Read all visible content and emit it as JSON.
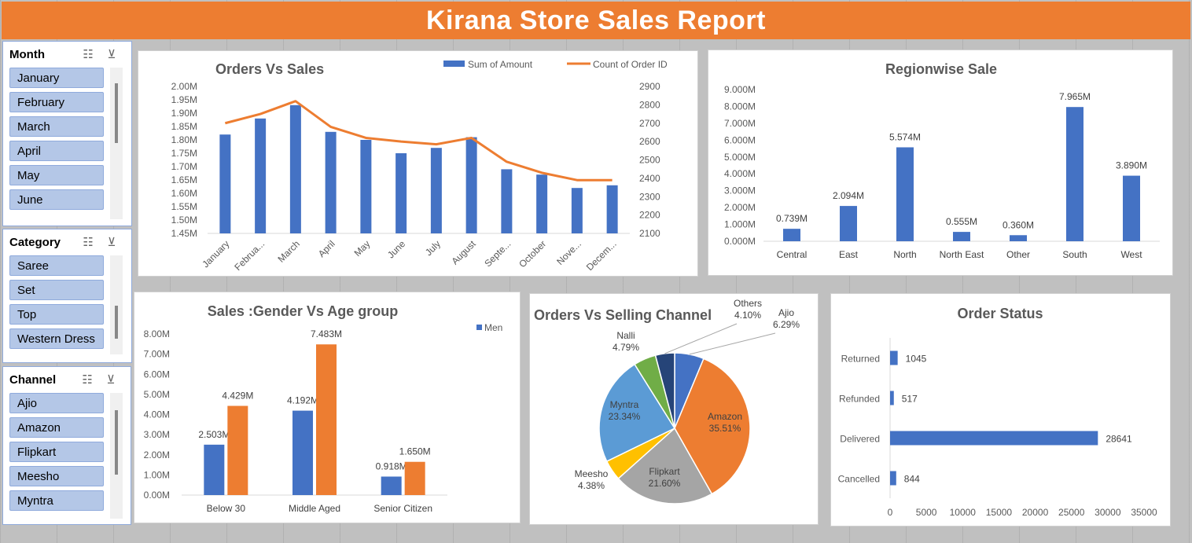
{
  "report_title": "Kirana Store Sales Report",
  "colors": {
    "title_bar": "#ed7d31",
    "blue": "#4472c4",
    "orange": "#ed7d31",
    "slicer_item": "#b4c7e7"
  },
  "slicers": {
    "month": {
      "title": "Month",
      "items": [
        "January",
        "February",
        "March",
        "April",
        "May",
        "June"
      ]
    },
    "category": {
      "title": "Category",
      "items": [
        "Saree",
        "Set",
        "Top",
        "Western Dress"
      ]
    },
    "channel": {
      "title": "Channel",
      "items": [
        "Ajio",
        "Amazon",
        "Flipkart",
        "Meesho",
        "Myntra"
      ]
    },
    "multi_select_icon": "multi-select-icon",
    "clear_filter_icon": "clear-filter-icon"
  },
  "chart_data": [
    {
      "id": "orders_vs_sales",
      "type": "bar",
      "title": "Orders Vs Sales",
      "categories": [
        "January",
        "Februa...",
        "March",
        "April",
        "May",
        "June",
        "July",
        "August",
        "Septe...",
        "October",
        "Nove...",
        "Decem..."
      ],
      "series": [
        {
          "name": "Sum of Amount",
          "kind": "bar",
          "axis": "left",
          "values": [
            1.82,
            1.88,
            1.93,
            1.83,
            1.8,
            1.75,
            1.77,
            1.81,
            1.69,
            1.67,
            1.62,
            1.63
          ]
        },
        {
          "name": "Count of Order ID",
          "kind": "line",
          "axis": "right",
          "values": [
            2700,
            2750,
            2820,
            2680,
            2620,
            2600,
            2585,
            2620,
            2490,
            2430,
            2390,
            2390
          ]
        }
      ],
      "left_ticks": [
        "2.00M",
        "1.95M",
        "1.90M",
        "1.85M",
        "1.80M",
        "1.75M",
        "1.70M",
        "1.65M",
        "1.60M",
        "1.55M",
        "1.50M",
        "1.45M"
      ],
      "right_ticks": [
        "2900",
        "2800",
        "2700",
        "2600",
        "2500",
        "2400",
        "2300",
        "2200",
        "2100"
      ],
      "ylim_left": [
        1.45,
        2.0
      ],
      "ylim_right": [
        2100,
        2900
      ],
      "legend": "top-right"
    },
    {
      "id": "regionwise_sale",
      "type": "bar",
      "title": "Regionwise Sale",
      "categories": [
        "Central",
        "East",
        "North",
        "North East",
        "Other",
        "South",
        "West"
      ],
      "values": [
        0.739,
        2.094,
        5.574,
        0.555,
        0.36,
        7.965,
        3.89
      ],
      "labels": [
        "0.739M",
        "2.094M",
        "5.574M",
        "0.555M",
        "0.360M",
        "7.965M",
        "3.890M"
      ],
      "y_ticks": [
        "9.000M",
        "8.000M",
        "7.000M",
        "6.000M",
        "5.000M",
        "4.000M",
        "3.000M",
        "2.000M",
        "1.000M",
        "0.000M"
      ],
      "ylim": [
        0,
        9
      ]
    },
    {
      "id": "gender_vs_age",
      "type": "bar",
      "title": "Sales :Gender Vs Age group",
      "categories": [
        "Below 30",
        "Middle Aged",
        "Senior Citizen"
      ],
      "series": [
        {
          "name": "Men",
          "values": [
            2.503,
            4.192,
            0.918
          ],
          "labels": [
            "2.503M",
            "4.192M",
            "0.918M"
          ]
        },
        {
          "name": "",
          "values": [
            4.429,
            7.483,
            1.65
          ],
          "labels": [
            "4.429M",
            "7.483M",
            "1.650M"
          ]
        }
      ],
      "y_ticks": [
        "8.00M",
        "7.00M",
        "6.00M",
        "5.00M",
        "4.00M",
        "3.00M",
        "2.00M",
        "1.00M",
        "0.00M"
      ],
      "ylim": [
        0,
        8
      ],
      "legend": "top-right"
    },
    {
      "id": "orders_vs_channel",
      "type": "pie",
      "title": "Orders Vs Selling Channel",
      "slices": [
        {
          "name": "Ajio",
          "label": "6.29%",
          "value": 6.29,
          "color": "#4472c4"
        },
        {
          "name": "Amazon",
          "label": "35.51%",
          "value": 35.51,
          "color": "#ed7d31"
        },
        {
          "name": "Flipkart",
          "label": "21.60%",
          "value": 21.6,
          "color": "#a5a5a5"
        },
        {
          "name": "Meesho",
          "label": "4.38%",
          "value": 4.38,
          "color": "#ffc000"
        },
        {
          "name": "Myntra",
          "label": "23.34%",
          "value": 23.34,
          "color": "#5b9bd5"
        },
        {
          "name": "Nalli",
          "label": "4.79%",
          "value": 4.79,
          "color": "#70ad47"
        },
        {
          "name": "Others",
          "label": "4.10%",
          "value": 4.1,
          "color": "#264478"
        }
      ]
    },
    {
      "id": "order_status",
      "type": "bar",
      "orientation": "horizontal",
      "title": "Order Status",
      "categories": [
        "Returned",
        "Refunded",
        "Delivered",
        "Cancelled"
      ],
      "values": [
        1045,
        517,
        28641,
        844
      ],
      "labels": [
        "1045",
        "517",
        "28641",
        "844"
      ],
      "x_ticks": [
        "0",
        "5000",
        "10000",
        "15000",
        "20000",
        "25000",
        "30000",
        "35000"
      ],
      "xlim": [
        0,
        35000
      ]
    }
  ]
}
